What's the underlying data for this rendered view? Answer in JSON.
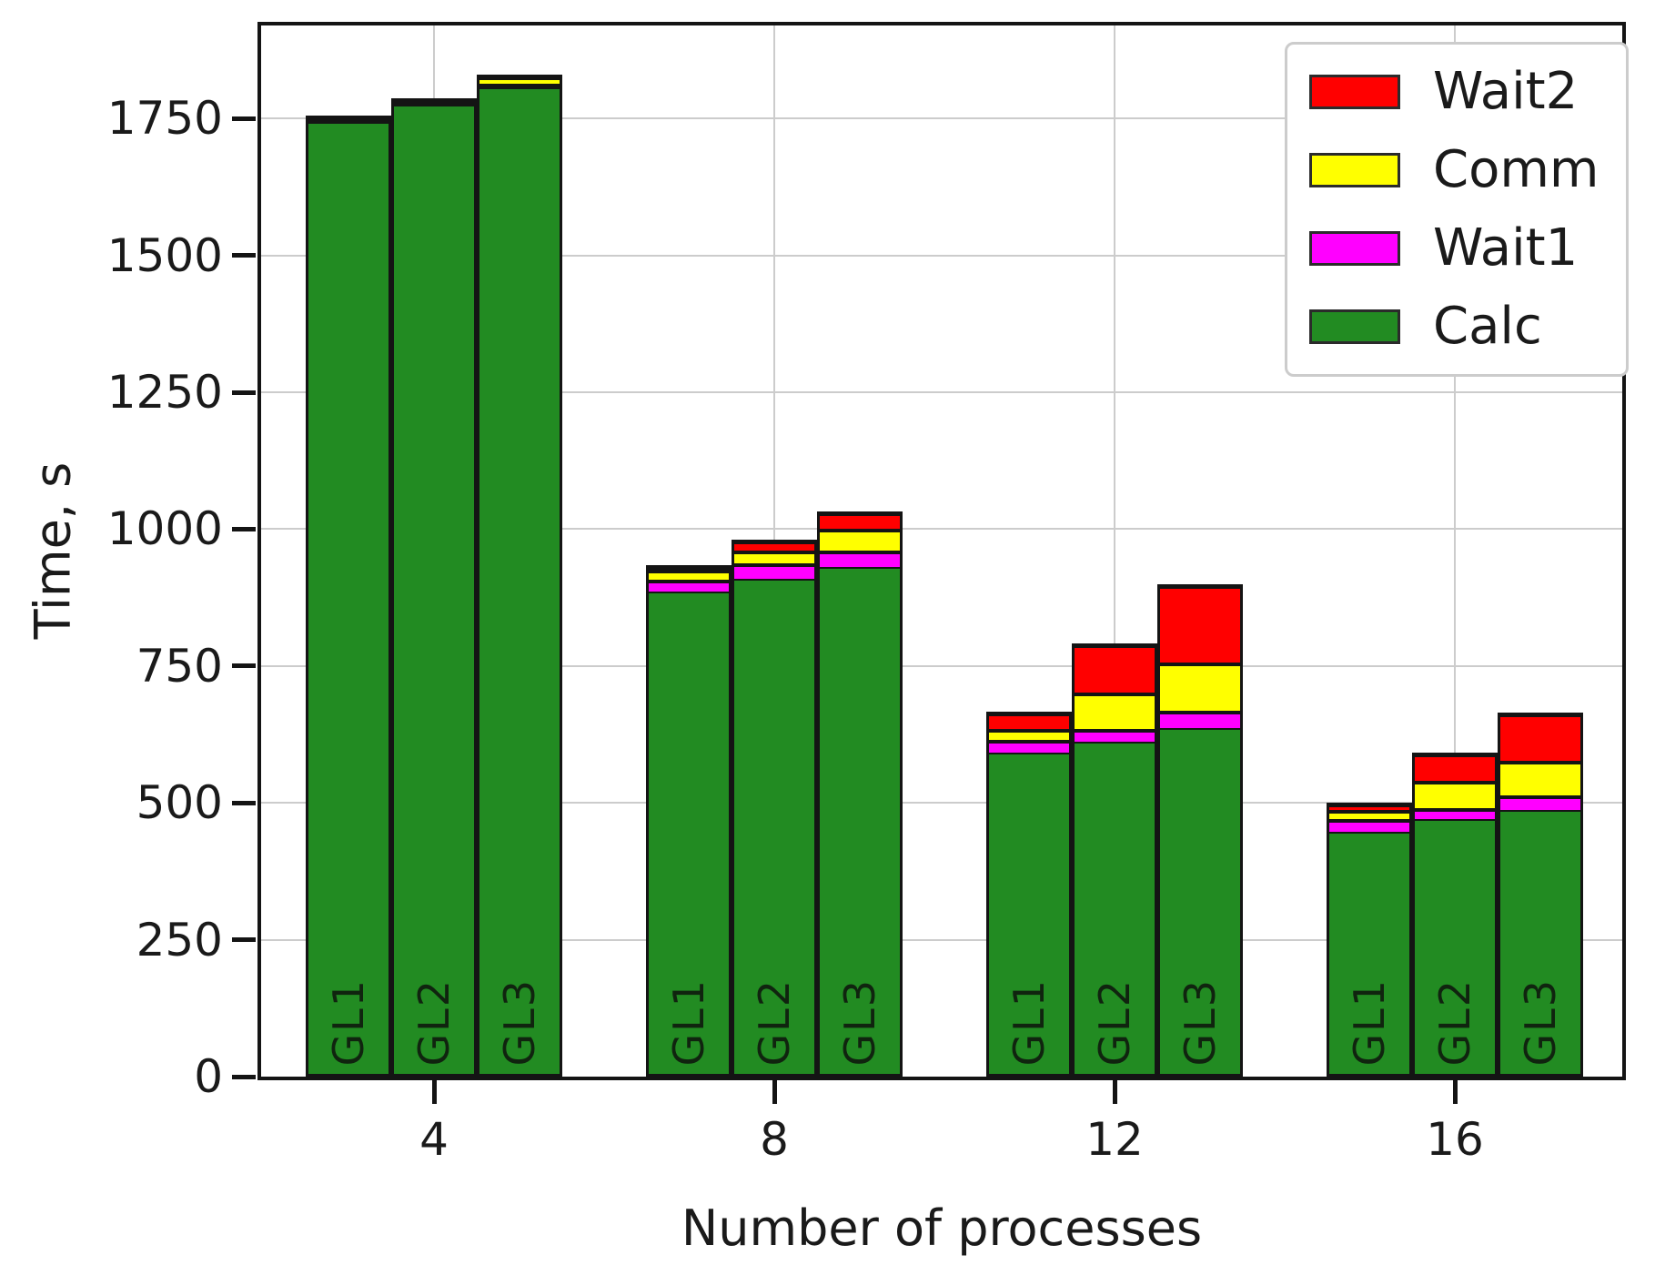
{
  "chart_data": {
    "type": "bar",
    "stacked": true,
    "xlabel": "Number of processes",
    "ylabel": "Time, s",
    "categories": [
      "4",
      "8",
      "12",
      "16"
    ],
    "bar_labels": [
      "GL1",
      "GL2",
      "GL3"
    ],
    "y_ticks": [
      0,
      250,
      500,
      750,
      1000,
      1250,
      1500,
      1750
    ],
    "ylim": [
      0,
      1920
    ],
    "grid": true,
    "legend_position": "upper right",
    "stack_order_bottom_to_top": [
      "Calc",
      "Wait1",
      "Comm",
      "Wait2"
    ],
    "series_colors": {
      "Calc": "#228B22",
      "Wait1": "#FF00FF",
      "Comm": "#FFFF00",
      "Wait2": "#FF0000"
    },
    "legend": [
      {
        "label": "Wait2",
        "color": "#FF0000"
      },
      {
        "label": "Comm",
        "color": "#FFFF00"
      },
      {
        "label": "Wait1",
        "color": "#FF00FF"
      },
      {
        "label": "Calc",
        "color": "#228B22"
      }
    ],
    "groups": [
      {
        "category": "4",
        "bars": [
          {
            "label": "GL1",
            "segments": {
              "Calc": 1750,
              "Wait1": 2,
              "Comm": 2,
              "Wait2": 1
            },
            "total": 1755
          },
          {
            "label": "GL2",
            "segments": {
              "Calc": 1782,
              "Wait1": 2,
              "Comm": 2,
              "Wait2": 1
            },
            "total": 1787
          },
          {
            "label": "GL3",
            "segments": {
              "Calc": 1812,
              "Wait1": 3,
              "Comm": 13,
              "Wait2": 3
            },
            "total": 1831
          }
        ]
      },
      {
        "category": "8",
        "bars": [
          {
            "label": "GL1",
            "segments": {
              "Calc": 887,
              "Wait1": 23,
              "Comm": 18,
              "Wait2": 6
            },
            "total": 934
          },
          {
            "label": "GL2",
            "segments": {
              "Calc": 911,
              "Wait1": 29,
              "Comm": 23,
              "Wait2": 18
            },
            "total": 981
          },
          {
            "label": "GL3",
            "segments": {
              "Calc": 933,
              "Wait1": 30,
              "Comm": 40,
              "Wait2": 30
            },
            "total": 1033
          }
        ]
      },
      {
        "category": "12",
        "bars": [
          {
            "label": "GL1",
            "segments": {
              "Calc": 594,
              "Wait1": 22,
              "Comm": 21,
              "Wait2": 30
            },
            "total": 667
          },
          {
            "label": "GL2",
            "segments": {
              "Calc": 614,
              "Wait1": 23,
              "Comm": 67,
              "Wait2": 88
            },
            "total": 792
          },
          {
            "label": "GL3",
            "segments": {
              "Calc": 639,
              "Wait1": 31,
              "Comm": 88,
              "Wait2": 142
            },
            "total": 900
          }
        ]
      },
      {
        "category": "16",
        "bars": [
          {
            "label": "GL1",
            "segments": {
              "Calc": 449,
              "Wait1": 23,
              "Comm": 17,
              "Wait2": 12
            },
            "total": 501
          },
          {
            "label": "GL2",
            "segments": {
              "Calc": 472,
              "Wait1": 20,
              "Comm": 50,
              "Wait2": 49
            },
            "total": 591
          },
          {
            "label": "GL3",
            "segments": {
              "Calc": 489,
              "Wait1": 27,
              "Comm": 63,
              "Wait2": 86
            },
            "total": 665
          }
        ]
      }
    ]
  }
}
